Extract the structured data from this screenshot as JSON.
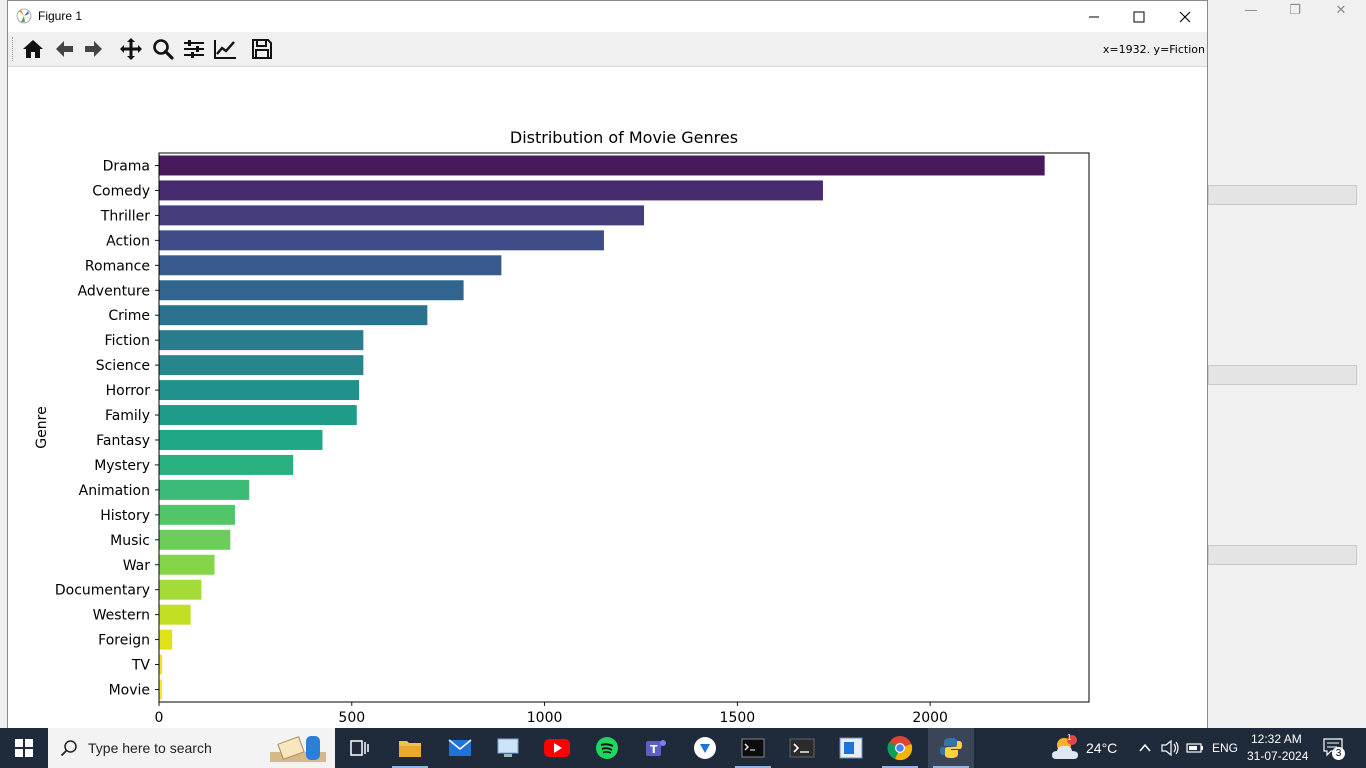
{
  "window": {
    "title": "Figure 1"
  },
  "toolbar": {
    "coordinate_readout": "x=1932. y=Fiction",
    "buttons": [
      "home-icon",
      "back-arrow-icon",
      "forward-arrow-icon",
      "pan-icon",
      "zoom-icon",
      "configure-subplots-icon",
      "edit-axes-icon",
      "save-icon"
    ]
  },
  "chart_data": {
    "type": "bar",
    "orientation": "horizontal",
    "title": "Distribution of Movie Genres",
    "xlabel": "",
    "ylabel": "Genre",
    "categories": [
      "Drama",
      "Comedy",
      "Thriller",
      "Action",
      "Romance",
      "Adventure",
      "Crime",
      "Fiction",
      "Science",
      "Horror",
      "Family",
      "Fantasy",
      "Mystery",
      "Animation",
      "History",
      "Music",
      "War",
      "Documentary",
      "Western",
      "Foreign",
      "TV",
      "Movie"
    ],
    "values": [
      2297,
      1722,
      1258,
      1154,
      888,
      790,
      696,
      530,
      530,
      519,
      513,
      424,
      348,
      234,
      197,
      185,
      144,
      110,
      82,
      34,
      8,
      8
    ],
    "xlim": [
      0,
      2412
    ],
    "xticks": [
      0,
      500,
      1000,
      1500,
      2000
    ],
    "grid": false,
    "palette": "viridis",
    "colors": [
      "#481a5c",
      "#482b6e",
      "#433d7c",
      "#3e4c88",
      "#38598c",
      "#32658e",
      "#2c718e",
      "#287c8e",
      "#25878d",
      "#21918c",
      "#1f9c89",
      "#22a785",
      "#2ab07f",
      "#3bbb75",
      "#52c569",
      "#6ccd5a",
      "#86d549",
      "#a5db36",
      "#c2df23",
      "#dfe318",
      "#f1e51d",
      "#fde725"
    ]
  },
  "taskbar": {
    "search_placeholder": "Type here to search",
    "weather_temp": "24°C",
    "weather_badge": "1",
    "language": "ENG",
    "time": "12:32 AM",
    "date": "31-07-2024",
    "notification_count": "3"
  }
}
